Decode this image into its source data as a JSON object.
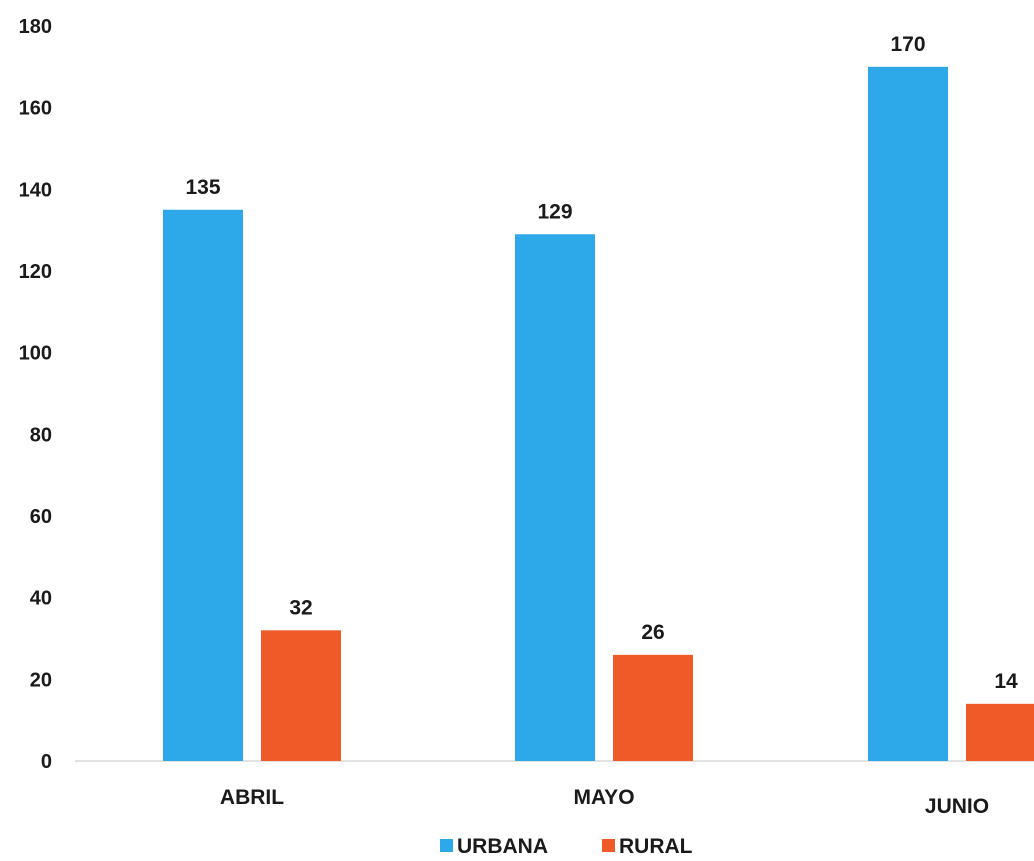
{
  "chart_data": {
    "type": "bar",
    "categories": [
      "ABRIL",
      "MAYO",
      "JUNIO"
    ],
    "series": [
      {
        "name": "URBANA",
        "values": [
          135,
          129,
          170
        ],
        "color": "#2da8e8"
      },
      {
        "name": "RURAL",
        "values": [
          32,
          26,
          14
        ],
        "color": "#f05a28"
      }
    ],
    "title": "",
    "xlabel": "",
    "ylabel": "",
    "ylim": [
      0,
      180
    ],
    "yticks": [
      0,
      20,
      40,
      60,
      80,
      100,
      120,
      140,
      160,
      180
    ],
    "grid": false,
    "legend": "bottom",
    "data_labels": true
  }
}
